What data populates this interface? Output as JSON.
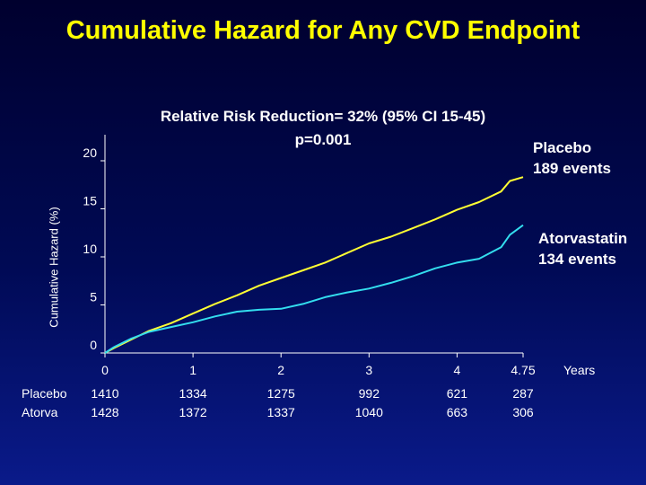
{
  "title": "Cumulative Hazard for Any CVD Endpoint",
  "subtitle_line1": "Relative Risk Reduction= 32% (95% CI 15-45)",
  "subtitle_line2": "p=0.001",
  "ylabel": "Cumulative Hazard (%)",
  "xlabel": "Years",
  "series_labels": {
    "placebo": [
      "Placebo",
      "189 events"
    ],
    "atorva": [
      "Atorvastatin",
      "134 events"
    ]
  },
  "risk_table": {
    "rows": [
      "Placebo",
      "Atorva"
    ],
    "columns": [
      {
        "x": 0,
        "placebo": "1410",
        "atorva": "1428"
      },
      {
        "x": 1,
        "placebo": "1334",
        "atorva": "1372"
      },
      {
        "x": 2,
        "placebo": "1275",
        "atorva": "1337"
      },
      {
        "x": 3,
        "placebo": "992",
        "atorva": "1040"
      },
      {
        "x": 4,
        "placebo": "621",
        "atorva": "663"
      },
      {
        "x": 4.75,
        "placebo": "287",
        "atorva": "306"
      }
    ]
  },
  "chart_data": {
    "type": "line",
    "title": "Cumulative Hazard for Any CVD Endpoint",
    "xlabel": "Years",
    "ylabel": "Cumulative Hazard (%)",
    "xlim": [
      0,
      4.75
    ],
    "ylim": [
      0,
      20
    ],
    "xticks": [
      0,
      1,
      2,
      3,
      4,
      4.75
    ],
    "xtick_labels": [
      "0",
      "1",
      "2",
      "3",
      "4",
      "4.75"
    ],
    "yticks": [
      0,
      5,
      10,
      15,
      20
    ],
    "grid": false,
    "series": [
      {
        "name": "Placebo",
        "color": "#ffff33",
        "x": [
          0,
          0.1,
          0.3,
          0.5,
          0.75,
          1.0,
          1.25,
          1.5,
          1.75,
          2.0,
          2.25,
          2.5,
          2.75,
          3.0,
          3.25,
          3.5,
          3.75,
          4.0,
          4.25,
          4.5,
          4.6,
          4.75
        ],
        "y": [
          0,
          0.5,
          1.4,
          2.3,
          3.1,
          4.1,
          5.1,
          6.0,
          7.0,
          7.8,
          8.6,
          9.4,
          10.4,
          11.4,
          12.1,
          13.0,
          13.9,
          14.9,
          15.7,
          16.8,
          17.9,
          18.3
        ]
      },
      {
        "name": "Atorvastatin",
        "color": "#33ddee",
        "x": [
          0,
          0.1,
          0.3,
          0.5,
          0.75,
          1.0,
          1.25,
          1.5,
          1.75,
          2.0,
          2.25,
          2.5,
          2.75,
          3.0,
          3.25,
          3.5,
          3.75,
          4.0,
          4.25,
          4.5,
          4.6,
          4.75
        ],
        "y": [
          0,
          0.6,
          1.5,
          2.2,
          2.7,
          3.2,
          3.8,
          4.3,
          4.5,
          4.6,
          5.1,
          5.8,
          6.3,
          6.7,
          7.3,
          8.0,
          8.8,
          9.4,
          9.8,
          11.0,
          12.3,
          13.3
        ]
      }
    ]
  }
}
